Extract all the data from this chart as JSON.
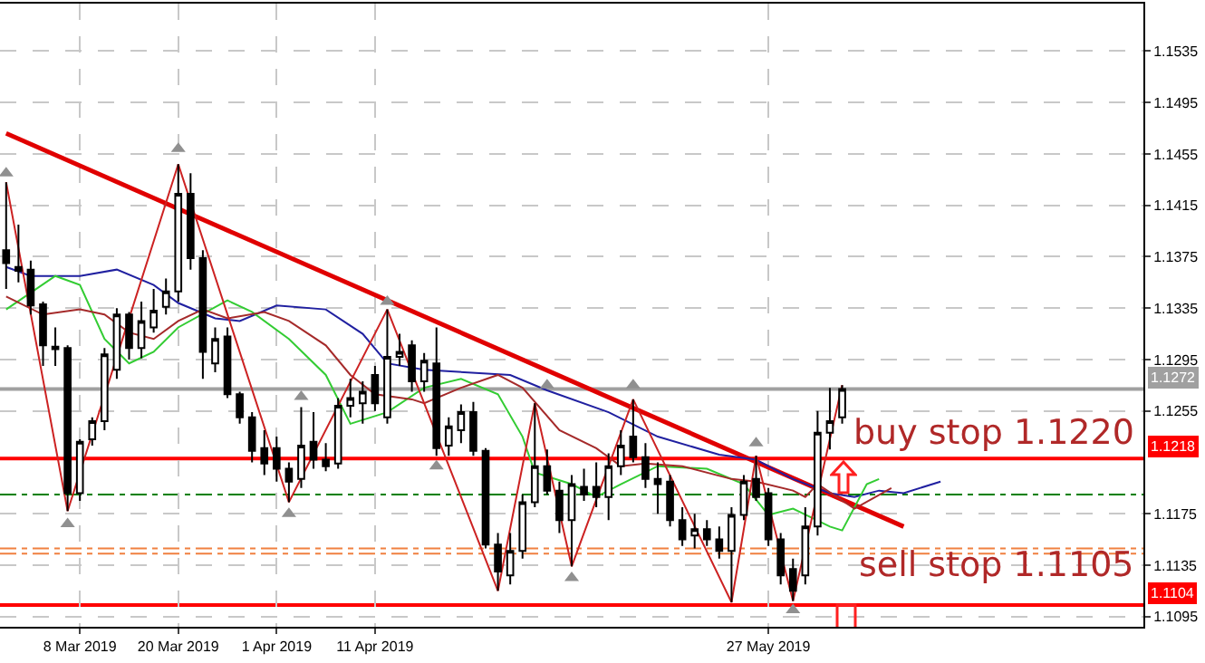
{
  "chart_data": {
    "type": "candlestick",
    "categories": [
      null,
      null,
      null,
      null,
      null,
      null,
      "8 Mar 2019",
      null,
      null,
      null,
      null,
      null,
      null,
      null,
      "20 Mar 2019",
      null,
      null,
      null,
      null,
      null,
      null,
      null,
      "1 Apr 2019",
      null,
      null,
      null,
      null,
      null,
      null,
      null,
      "11 Apr 2019",
      null,
      null,
      null,
      null,
      null,
      null,
      null,
      null,
      null,
      null,
      null,
      null,
      null,
      null,
      null,
      null,
      null,
      null,
      null,
      null,
      null,
      null,
      null,
      null,
      null,
      null,
      null,
      null,
      null,
      null,
      null,
      "27 May 2019",
      null,
      null,
      null,
      null,
      null,
      null,
      null,
      null,
      null,
      null,
      null,
      null,
      null,
      null,
      null,
      null,
      null,
      null,
      null,
      null,
      null,
      null,
      null,
      null,
      null,
      null,
      null,
      null,
      null,
      null
    ],
    "ohlc": [
      [
        1.138,
        1.1433,
        1.135,
        1.137
      ],
      [
        1.1367,
        1.14,
        1.1355,
        1.1364
      ],
      [
        1.1365,
        1.1372,
        1.133,
        1.1337
      ],
      [
        1.1338,
        1.134,
        1.129,
        1.1306
      ],
      [
        1.1305,
        1.132,
        1.129,
        1.1303
      ],
      [
        1.1304,
        1.1306,
        1.1177,
        1.1191
      ],
      [
        1.1191,
        1.1233,
        1.1185,
        1.1231
      ],
      [
        1.1233,
        1.125,
        1.1228,
        1.1247
      ],
      [
        1.1247,
        1.1304,
        1.124,
        1.1299
      ],
      [
        1.1287,
        1.1335,
        1.128,
        1.133
      ],
      [
        1.133,
        1.1332,
        1.1295,
        1.1304
      ],
      [
        1.1304,
        1.134,
        1.1296,
        1.1325
      ],
      [
        1.132,
        1.135,
        1.1316,
        1.1333
      ],
      [
        1.1336,
        1.1358,
        1.133,
        1.1348
      ],
      [
        1.1348,
        1.1447,
        1.134,
        1.1424
      ],
      [
        1.1424,
        1.144,
        1.1365,
        1.1374
      ],
      [
        1.1374,
        1.138,
        1.128,
        1.1301
      ],
      [
        1.1292,
        1.132,
        1.1285,
        1.1311
      ],
      [
        1.1313,
        1.132,
        1.1265,
        1.1268
      ],
      [
        1.1268,
        1.127,
        1.1245,
        1.125
      ],
      [
        1.125,
        1.1254,
        1.1215,
        1.1224
      ],
      [
        1.1226,
        1.124,
        1.1205,
        1.1214
      ],
      [
        1.1226,
        1.1235,
        1.12,
        1.121
      ],
      [
        1.121,
        1.1215,
        1.1184,
        1.12
      ],
      [
        1.1202,
        1.1258,
        1.1195,
        1.1228
      ],
      [
        1.1231,
        1.1254,
        1.121,
        1.1217
      ],
      [
        1.1217,
        1.123,
        1.1208,
        1.1212
      ],
      [
        1.1214,
        1.1265,
        1.121,
        1.1259
      ],
      [
        1.1259,
        1.128,
        1.125,
        1.1265
      ],
      [
        1.1261,
        1.1278,
        1.1245,
        1.127
      ],
      [
        1.1283,
        1.129,
        1.1255,
        1.1261
      ],
      [
        1.125,
        1.1334,
        1.1245,
        1.1297
      ],
      [
        1.1297,
        1.1315,
        1.129,
        1.1301
      ],
      [
        1.1306,
        1.131,
        1.127,
        1.1278
      ],
      [
        1.1278,
        1.13,
        1.127,
        1.1294
      ],
      [
        1.1292,
        1.132,
        1.122,
        1.1226
      ],
      [
        1.1228,
        1.125,
        1.122,
        1.1243
      ],
      [
        1.124,
        1.126,
        1.123,
        1.1254
      ],
      [
        1.1254,
        1.1262,
        1.122,
        1.1224
      ],
      [
        1.1224,
        1.1226,
        1.1148,
        1.1151
      ],
      [
        1.1151,
        1.116,
        1.1115,
        1.113
      ],
      [
        1.1127,
        1.116,
        1.112,
        1.1146
      ],
      [
        1.1146,
        1.119,
        1.114,
        1.1184
      ],
      [
        1.1184,
        1.1261,
        1.118,
        1.1212
      ],
      [
        1.1212,
        1.1225,
        1.119,
        1.1193
      ],
      [
        1.1193,
        1.12,
        1.116,
        1.117
      ],
      [
        1.117,
        1.1205,
        1.1134,
        1.1198
      ],
      [
        1.1196,
        1.121,
        1.1185,
        1.119
      ],
      [
        1.1196,
        1.1215,
        1.118,
        1.1188
      ],
      [
        1.1188,
        1.1222,
        1.117,
        1.1212
      ],
      [
        1.1212,
        1.124,
        1.1205,
        1.1228
      ],
      [
        1.1235,
        1.1264,
        1.1215,
        1.1219
      ],
      [
        1.1219,
        1.123,
        1.1195,
        1.1202
      ],
      [
        1.1202,
        1.1215,
        1.1175,
        1.1198
      ],
      [
        1.12,
        1.1205,
        1.1165,
        1.117
      ],
      [
        1.117,
        1.118,
        1.115,
        1.1155
      ],
      [
        1.1158,
        1.1175,
        1.1148,
        1.1163
      ],
      [
        1.1163,
        1.117,
        1.115,
        1.1155
      ],
      [
        1.1155,
        1.1165,
        1.114,
        1.1146
      ],
      [
        1.1146,
        1.118,
        1.1106,
        1.1174
      ],
      [
        1.1174,
        1.1205,
        1.117,
        1.12
      ],
      [
        1.1202,
        1.122,
        1.1185,
        1.1188
      ],
      [
        1.1191,
        1.1195,
        1.115,
        1.1155
      ],
      [
        1.1155,
        1.116,
        1.112,
        1.1127
      ],
      [
        1.1132,
        1.114,
        1.1107,
        1.1115
      ],
      [
        1.1127,
        1.118,
        1.112,
        1.1165
      ],
      [
        1.1165,
        1.1255,
        1.1158,
        1.1238
      ],
      [
        1.1238,
        1.1273,
        1.1225,
        1.1247
      ],
      [
        1.125,
        1.1275,
        1.1245,
        1.1272
      ],
      null,
      null,
      null,
      null,
      null,
      null,
      null,
      null,
      null,
      null,
      null,
      null,
      null,
      null,
      null,
      null,
      null,
      null,
      null,
      null,
      null,
      null,
      null,
      null
    ],
    "series": [
      {
        "type": "line",
        "color": "#e00000",
        "values": [
          1.1471,
          null,
          null,
          null,
          null,
          null,
          null,
          null,
          null,
          null,
          null,
          null,
          null,
          null,
          null,
          null,
          null,
          null,
          null,
          null,
          null,
          null,
          null,
          null,
          null,
          null,
          null,
          null,
          null,
          null,
          null,
          null,
          null,
          null,
          null,
          null,
          null,
          null,
          null,
          null,
          null,
          null,
          null,
          null,
          null,
          null,
          null,
          null,
          null,
          null,
          null,
          null,
          null,
          null,
          null,
          null,
          null,
          null,
          null,
          null,
          null,
          null,
          null,
          null,
          null,
          null,
          null,
          null,
          null,
          null,
          null,
          null,
          null,
          1.1165,
          null,
          null,
          null,
          null,
          null,
          null,
          null,
          null,
          null,
          null,
          null,
          null,
          null,
          null,
          null,
          null,
          null,
          null,
          null
        ]
      },
      {
        "type": "line",
        "color": "#2020a0",
        "values": [
          1.1367,
          null,
          1.136,
          null,
          null,
          null,
          1.136,
          null,
          null,
          1.1365,
          null,
          null,
          1.1353,
          null,
          1.1339,
          null,
          null,
          1.1327,
          null,
          1.1325,
          null,
          null,
          1.1337,
          null,
          null,
          null,
          1.1334,
          null,
          null,
          1.1315,
          null,
          1.1292,
          null,
          null,
          1.1287,
          null,
          null,
          null,
          null,
          null,
          null,
          1.1283,
          null,
          null,
          1.1271,
          null,
          null,
          null,
          null,
          1.1254,
          null,
          null,
          null,
          1.1235,
          null,
          null,
          null,
          null,
          1.1221,
          null,
          null,
          1.1217,
          null,
          null,
          1.1202,
          null,
          null,
          1.1191,
          null,
          1.1188,
          null,
          1.1193,
          null,
          1.1191,
          null,
          null,
          1.12,
          null,
          null,
          null,
          null,
          null,
          null,
          null,
          null,
          null,
          null,
          null,
          null,
          null,
          null,
          null,
          null
        ]
      },
      {
        "type": "line",
        "color": "#33cc33",
        "values": [
          1.1334,
          null,
          null,
          null,
          1.136,
          null,
          1.1353,
          null,
          1.1311,
          null,
          1.1292,
          null,
          1.1301,
          null,
          1.132,
          null,
          null,
          null,
          1.1341,
          null,
          1.1332,
          null,
          null,
          1.1311,
          null,
          null,
          1.1283,
          null,
          1.1245,
          null,
          null,
          1.1254,
          null,
          null,
          1.1273,
          null,
          null,
          1.128,
          null,
          null,
          1.1268,
          null,
          1.1235,
          1.1207,
          null,
          null,
          1.1198,
          null,
          1.1188,
          null,
          1.1198,
          null,
          null,
          1.1212,
          null,
          null,
          null,
          1.121,
          null,
          null,
          1.1198,
          null,
          1.1174,
          null,
          1.1179,
          null,
          null,
          1.1165,
          1.1162,
          null,
          1.1198,
          1.1202,
          null,
          null,
          null,
          null,
          null,
          null,
          null,
          null,
          null,
          null,
          null,
          null,
          null,
          null,
          null,
          null,
          null,
          null,
          null,
          null,
          null
        ]
      },
      {
        "type": "line",
        "color": "#a52a2a",
        "values": [
          1.1344,
          null,
          null,
          1.133,
          null,
          null,
          1.1334,
          null,
          1.133,
          null,
          1.1316,
          null,
          1.1311,
          null,
          1.1325,
          null,
          1.1334,
          null,
          1.1327,
          null,
          null,
          1.1332,
          null,
          1.1325,
          null,
          null,
          1.1306,
          null,
          1.1283,
          null,
          1.1268,
          null,
          null,
          1.1264,
          1.1261,
          null,
          null,
          1.1273,
          null,
          null,
          1.1283,
          null,
          1.1273,
          null,
          null,
          1.124,
          null,
          null,
          1.1226,
          null,
          1.1212,
          null,
          1.1214,
          null,
          null,
          1.1212,
          null,
          null,
          null,
          1.1202,
          null,
          1.12,
          null,
          null,
          1.1193,
          1.1188,
          1.1198,
          null,
          null,
          1.1179,
          null,
          null,
          1.1195,
          null,
          null,
          null,
          null,
          null,
          null,
          null,
          null,
          null,
          null,
          null,
          null,
          null,
          null,
          null,
          null,
          null,
          null,
          null,
          null
        ]
      },
      {
        "type": "line",
        "color": "#cc2222",
        "values": [
          1.1433,
          null,
          null,
          null,
          null,
          1.1177,
          null,
          null,
          null,
          null,
          null,
          null,
          null,
          null,
          1.1447,
          null,
          null,
          null,
          null,
          null,
          null,
          null,
          null,
          1.1184,
          null,
          null,
          null,
          null,
          null,
          null,
          null,
          1.1334,
          null,
          null,
          null,
          null,
          null,
          null,
          null,
          null,
          1.1115,
          null,
          null,
          1.1261,
          null,
          null,
          1.1134,
          null,
          null,
          null,
          null,
          1.1264,
          null,
          null,
          null,
          null,
          null,
          null,
          null,
          1.1106,
          null,
          1.122,
          null,
          null,
          1.1107,
          null,
          null,
          null,
          1.1275,
          null,
          null,
          null,
          null,
          null,
          null,
          null,
          null,
          null,
          null,
          null,
          null,
          null,
          null,
          null,
          null,
          null,
          null,
          null,
          null,
          null,
          null,
          null,
          null
        ]
      },
      {
        "type": "scatter",
        "color": "#909090",
        "marker": "triangle",
        "values": [
          1.144,
          null,
          null,
          null,
          null,
          null,
          null,
          null,
          null,
          null,
          null,
          null,
          null,
          null,
          1.1459,
          null,
          null,
          null,
          null,
          null,
          null,
          null,
          null,
          null,
          1.1266,
          null,
          null,
          null,
          null,
          null,
          null,
          1.134,
          null,
          null,
          null,
          null,
          null,
          null,
          null,
          null,
          null,
          null,
          null,
          null,
          1.1275,
          null,
          null,
          null,
          null,
          null,
          null,
          1.1275,
          null,
          null,
          null,
          null,
          null,
          null,
          null,
          null,
          null,
          1.123,
          null,
          null,
          null,
          null,
          null,
          null,
          null,
          null,
          null,
          null,
          null,
          null,
          null,
          null,
          null,
          null,
          null,
          null,
          null,
          null,
          null,
          null,
          null,
          null,
          null,
          null,
          null,
          null,
          null,
          null,
          null
        ]
      },
      {
        "type": "scatter",
        "color": "#909090",
        "marker": "triangle",
        "values": [
          null,
          null,
          null,
          null,
          null,
          1.1167,
          null,
          null,
          null,
          null,
          null,
          null,
          null,
          null,
          null,
          null,
          null,
          null,
          null,
          null,
          null,
          null,
          null,
          1.1175,
          null,
          null,
          null,
          null,
          null,
          null,
          null,
          null,
          null,
          null,
          null,
          1.1212,
          null,
          null,
          null,
          null,
          null,
          null,
          null,
          null,
          null,
          null,
          1.1125,
          null,
          null,
          null,
          null,
          null,
          null,
          null,
          null,
          null,
          null,
          null,
          null,
          null,
          null,
          null,
          null,
          null,
          1.11,
          null,
          null,
          null,
          null,
          null,
          null,
          null,
          null,
          null,
          null,
          null,
          null,
          null,
          null,
          null,
          null,
          null,
          null,
          null,
          null,
          null,
          null,
          null,
          null,
          null,
          null,
          null,
          null
        ]
      }
    ],
    "ylim": [
      1.1087,
      1.1572
    ],
    "yticks": [
      1.1095,
      1.1135,
      1.1175,
      1.1255,
      1.1295,
      1.1335,
      1.1375,
      1.1415,
      1.1455,
      1.1495,
      1.1535
    ],
    "ref_lines": [
      {
        "axis": "y",
        "value": 1.1272,
        "label": "1.1272",
        "color": "#a0a0a0",
        "line_style": "solid"
      },
      {
        "axis": "y",
        "value": 1.1218,
        "label": "1.1218",
        "color": "#ff0000",
        "line_style": "solid"
      },
      {
        "axis": "y",
        "value": 1.1104,
        "label": "1.1104",
        "color": "#ff0000",
        "line_style": "solid"
      },
      {
        "axis": "y",
        "value": 1.119,
        "color": "#008000",
        "line_style": "dashed"
      },
      {
        "axis": "y",
        "value": 1.1148,
        "color": "#f08040",
        "line_style": "dashed"
      },
      {
        "axis": "y",
        "value": 1.1144,
        "color": "#f08040",
        "line_style": "dashed"
      }
    ],
    "annotations": [
      "buy stop 1.1220",
      "sell stop 1.1105"
    ],
    "grid": true
  }
}
